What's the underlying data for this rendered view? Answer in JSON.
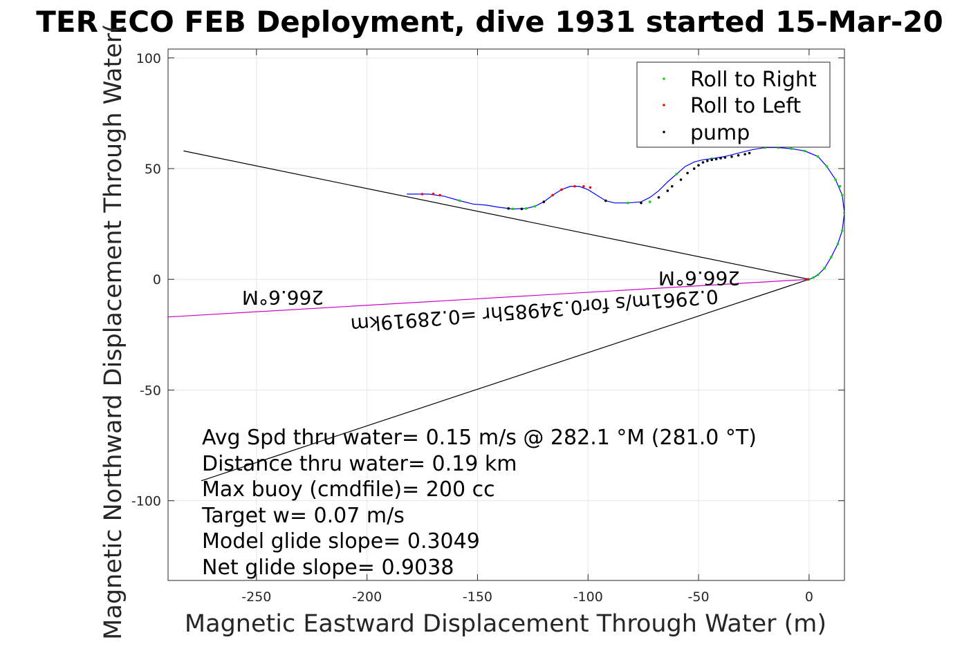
{
  "chart_data": {
    "type": "line",
    "title": "TER ECO FEB Deployment, dive 1931 started 15-Mar-20",
    "xlabel": "Magnetic Eastward Displacement Through Water (m)",
    "ylabel": "Magnetic Northward Displacement Through Water(",
    "xlim": [
      -290,
      16
    ],
    "ylim": [
      -136,
      104
    ],
    "xticks": [
      -250,
      -200,
      -150,
      -100,
      -50,
      0
    ],
    "yticks": [
      -100,
      -50,
      0,
      50,
      100
    ],
    "xtick_labels": [
      "-250",
      "-200",
      "-150",
      "-100",
      "-50",
      "0"
    ],
    "ytick_labels": [
      "-100",
      "-50",
      "0",
      "50",
      "100"
    ],
    "grid": true,
    "legend_position": "top-right",
    "legend": [
      {
        "label": "Roll to Right",
        "color": "#00dd00"
      },
      {
        "label": "Roll to Left",
        "color": "#ff0000"
      },
      {
        "label": "pump",
        "color": "#000000"
      }
    ],
    "track": {
      "color": "#0000ff",
      "x": [
        -182,
        -172,
        -165,
        -158,
        -152,
        -146,
        -140,
        -134,
        -128,
        -124,
        -120,
        -116,
        -112,
        -108,
        -104,
        -100,
        -96,
        -92,
        -88,
        -82,
        -76,
        -72,
        -68,
        -64,
        -60,
        -56,
        -52,
        -48,
        -44,
        -38,
        -32,
        -26,
        -20,
        -14,
        -8,
        -2,
        4,
        8,
        12,
        15,
        16,
        15,
        13,
        10,
        7,
        4,
        2,
        0
      ],
      "y": [
        38.5,
        38.5,
        37.5,
        35.5,
        34,
        33.5,
        32.5,
        31.8,
        32,
        33,
        35,
        38,
        40.5,
        42,
        42,
        40.5,
        38,
        35.5,
        34.5,
        34.5,
        35,
        37,
        40,
        44,
        47.5,
        51,
        53,
        54,
        54.5,
        55.5,
        57,
        58.5,
        59.5,
        59.5,
        59,
        58,
        55.5,
        51,
        45,
        38,
        30,
        22,
        16,
        10,
        5,
        2,
        0.8,
        0
      ]
    },
    "points": {
      "roll_right": {
        "color": "#00dd00",
        "x": [
          -158,
          -134,
          -128,
          -124,
          -82,
          -72,
          -60,
          -44,
          -20,
          -14,
          -8,
          -2,
          4,
          8,
          12,
          14,
          15,
          16,
          15,
          13,
          10,
          7,
          4,
          2,
          0
        ],
        "y": [
          35.5,
          31.8,
          32,
          33,
          34.5,
          35,
          47.5,
          54.5,
          59.5,
          59.5,
          59,
          58,
          55.5,
          51,
          45,
          42,
          38,
          30,
          22,
          16,
          10,
          5,
          2,
          0.8,
          0
        ]
      },
      "roll_left": {
        "color": "#ff0000",
        "x": [
          -175,
          -170,
          -167,
          -116,
          -112,
          -106,
          -102,
          -99,
          -0.5
        ],
        "y": [
          38.5,
          38.6,
          38,
          38,
          40.5,
          42,
          42,
          41.5,
          0
        ]
      },
      "pump": {
        "color": "#000000",
        "x": [
          -136,
          -130,
          -120,
          -92,
          -76,
          -68,
          -64,
          -62,
          -58,
          -55,
          -52,
          -50,
          -48,
          -46,
          -44,
          -42,
          -40,
          -38,
          -35,
          -32,
          -29,
          -27
        ],
        "y": [
          32,
          31.8,
          35,
          35.5,
          34.5,
          37,
          40,
          42,
          45,
          48,
          50,
          51.5,
          52.8,
          53.5,
          54,
          54.3,
          54.7,
          55,
          55.4,
          56,
          56.5,
          57
        ]
      }
    },
    "lines": [
      {
        "name": "",
        "color": "#000000",
        "x": [
          -283,
          0
        ],
        "y": [
          58,
          0
        ]
      },
      {
        "name": "",
        "color": "#000000",
        "x": [
          -275,
          0
        ],
        "y": [
          -91,
          0
        ]
      },
      {
        "name": "",
        "color": "#cc00cc",
        "x": [
          -290,
          0
        ],
        "y": [
          -17,
          0
        ]
      }
    ],
    "annotations": {
      "heading_far": "266.6°M",
      "heading_near": "266.6°M",
      "segment_speed": "0.2961m/s for0.34985hr =0.28919km"
    },
    "stats": [
      "Avg Spd thru water=  0.15 m/s @ 282.1 °M (281.0 °T)",
      "Distance thru water=  0.19 km",
      "Max buoy (cmdfile)= 200 cc",
      "Target w= 0.07 m/s",
      "Model glide slope= 0.3049",
      "Net glide slope= 0.9038"
    ]
  }
}
